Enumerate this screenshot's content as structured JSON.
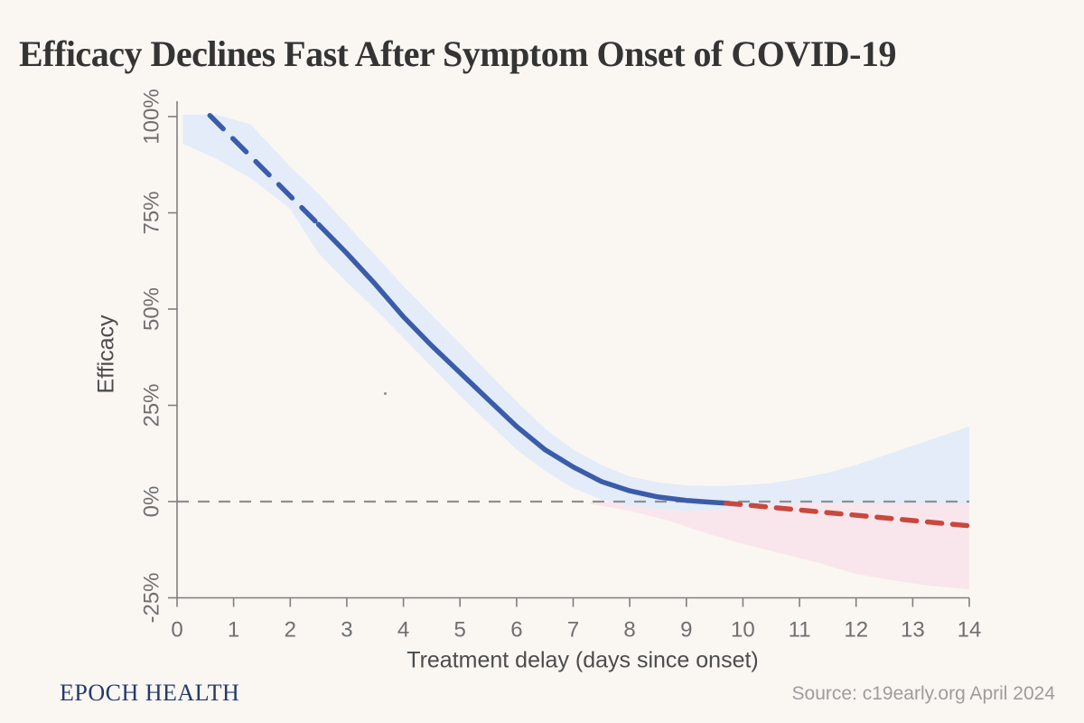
{
  "page": {
    "background_color": "#faf7f3",
    "footer": {
      "brand": "EPOCH HEALTH",
      "source": "Source: c19early.org April 2024"
    }
  },
  "chart_data": {
    "type": "line",
    "title": "Efficacy Declines Fast After Symptom Onset of COVID-19",
    "xlabel": "Treatment delay (days since onset)",
    "ylabel": "Efficacy",
    "xlim": [
      0,
      14
    ],
    "ylim": [
      -25,
      100
    ],
    "y_unit": "%",
    "grid": false,
    "legend": false,
    "xticks": [
      0,
      1,
      2,
      3,
      4,
      5,
      6,
      7,
      8,
      9,
      10,
      11,
      12,
      13,
      14
    ],
    "yticks": [
      {
        "value": 100,
        "label": "100%"
      },
      {
        "value": 75,
        "label": "75%"
      },
      {
        "value": 50,
        "label": "50%"
      },
      {
        "value": 25,
        "label": "25%"
      },
      {
        "value": 0,
        "label": "0%"
      },
      {
        "value": -25,
        "label": "-25%"
      }
    ],
    "zero_line": {
      "y": 0,
      "style": "dashed",
      "color": "#8f8f8f"
    },
    "colors": {
      "efficacy_line": "#3a5ca9",
      "harm_line": "#c9483e",
      "efficacy_band": "#e3ecf8",
      "harm_band": "#f9e6ec"
    },
    "bands": [
      {
        "name": "harm-confidence-band",
        "color": "#f9e6ec",
        "upper": [
          [
            7.3,
            -0.1
          ],
          [
            14,
            -0.1
          ]
        ],
        "lower": [
          [
            7.3,
            -0.6
          ],
          [
            8,
            -2.4
          ],
          [
            8.7,
            -5
          ],
          [
            9.3,
            -8
          ],
          [
            10,
            -11
          ],
          [
            10.7,
            -13.6
          ],
          [
            11.3,
            -15.8
          ],
          [
            12,
            -18.8
          ],
          [
            12.7,
            -20.6
          ],
          [
            13.3,
            -21.9
          ],
          [
            14,
            -22.8
          ]
        ]
      },
      {
        "name": "efficacy-confidence-band",
        "color": "#e3ecf8",
        "upper": [
          [
            0.1,
            100.5
          ],
          [
            0.7,
            100.5
          ],
          [
            1.3,
            98
          ],
          [
            2,
            87
          ],
          [
            2.5,
            80
          ],
          [
            3,
            72
          ],
          [
            3.5,
            64
          ],
          [
            4,
            56
          ],
          [
            4.5,
            48.5
          ],
          [
            5,
            41
          ],
          [
            5.5,
            33.5
          ],
          [
            6,
            26
          ],
          [
            6.5,
            19
          ],
          [
            7,
            13.5
          ],
          [
            7.5,
            9.5
          ],
          [
            8,
            6.5
          ],
          [
            8.5,
            5
          ],
          [
            9,
            4.2
          ],
          [
            9.5,
            4
          ],
          [
            10,
            4.3
          ],
          [
            10.5,
            4.8
          ],
          [
            11,
            6
          ],
          [
            11.5,
            7.5
          ],
          [
            12,
            9.5
          ],
          [
            12.5,
            12
          ],
          [
            13,
            14.5
          ],
          [
            13.5,
            17
          ],
          [
            14,
            19.5
          ]
        ],
        "lower": [
          [
            0.1,
            93
          ],
          [
            0.7,
            89
          ],
          [
            1.3,
            84
          ],
          [
            2,
            76
          ],
          [
            2.5,
            64.5
          ],
          [
            3,
            57
          ],
          [
            3.5,
            50
          ],
          [
            4,
            42.5
          ],
          [
            4.5,
            35
          ],
          [
            5,
            27.5
          ],
          [
            5.5,
            20.5
          ],
          [
            6,
            13.5
          ],
          [
            6.5,
            8
          ],
          [
            7,
            3.5
          ],
          [
            7.5,
            0.5
          ],
          [
            8,
            -1
          ],
          [
            8.5,
            -2
          ],
          [
            9,
            -2.5
          ],
          [
            9.5,
            -2.2
          ],
          [
            10,
            -1.4
          ],
          [
            10.5,
            -0.8
          ],
          [
            11,
            -0.5
          ],
          [
            12,
            -0.4
          ],
          [
            13,
            -0.4
          ],
          [
            14,
            -0.4
          ]
        ]
      }
    ],
    "series": [
      {
        "name": "efficacy-extrapolated-early",
        "line_style": "dashed",
        "color": "#3a5ca9",
        "points": [
          [
            0.58,
            100.3
          ],
          [
            2.5,
            72
          ]
        ]
      },
      {
        "name": "efficacy-fitted",
        "line_style": "solid",
        "color": "#3a5ca9",
        "points": [
          [
            2.5,
            72
          ],
          [
            3,
            64.5
          ],
          [
            3.5,
            56.5
          ],
          [
            4,
            48
          ],
          [
            4.5,
            40.5
          ],
          [
            5,
            33.5
          ],
          [
            5.5,
            26.5
          ],
          [
            6,
            19.5
          ],
          [
            6.5,
            13.5
          ],
          [
            7,
            9
          ],
          [
            7.5,
            5.2
          ],
          [
            8,
            2.8
          ],
          [
            8.5,
            1.2
          ],
          [
            9,
            0.3
          ],
          [
            9.35,
            -0.1
          ],
          [
            9.7,
            -0.4
          ]
        ]
      },
      {
        "name": "efficacy-extrapolated-harm",
        "line_style": "dashed",
        "color": "#c9483e",
        "points": [
          [
            9.7,
            -0.4
          ],
          [
            14,
            -6.3
          ]
        ]
      }
    ]
  }
}
